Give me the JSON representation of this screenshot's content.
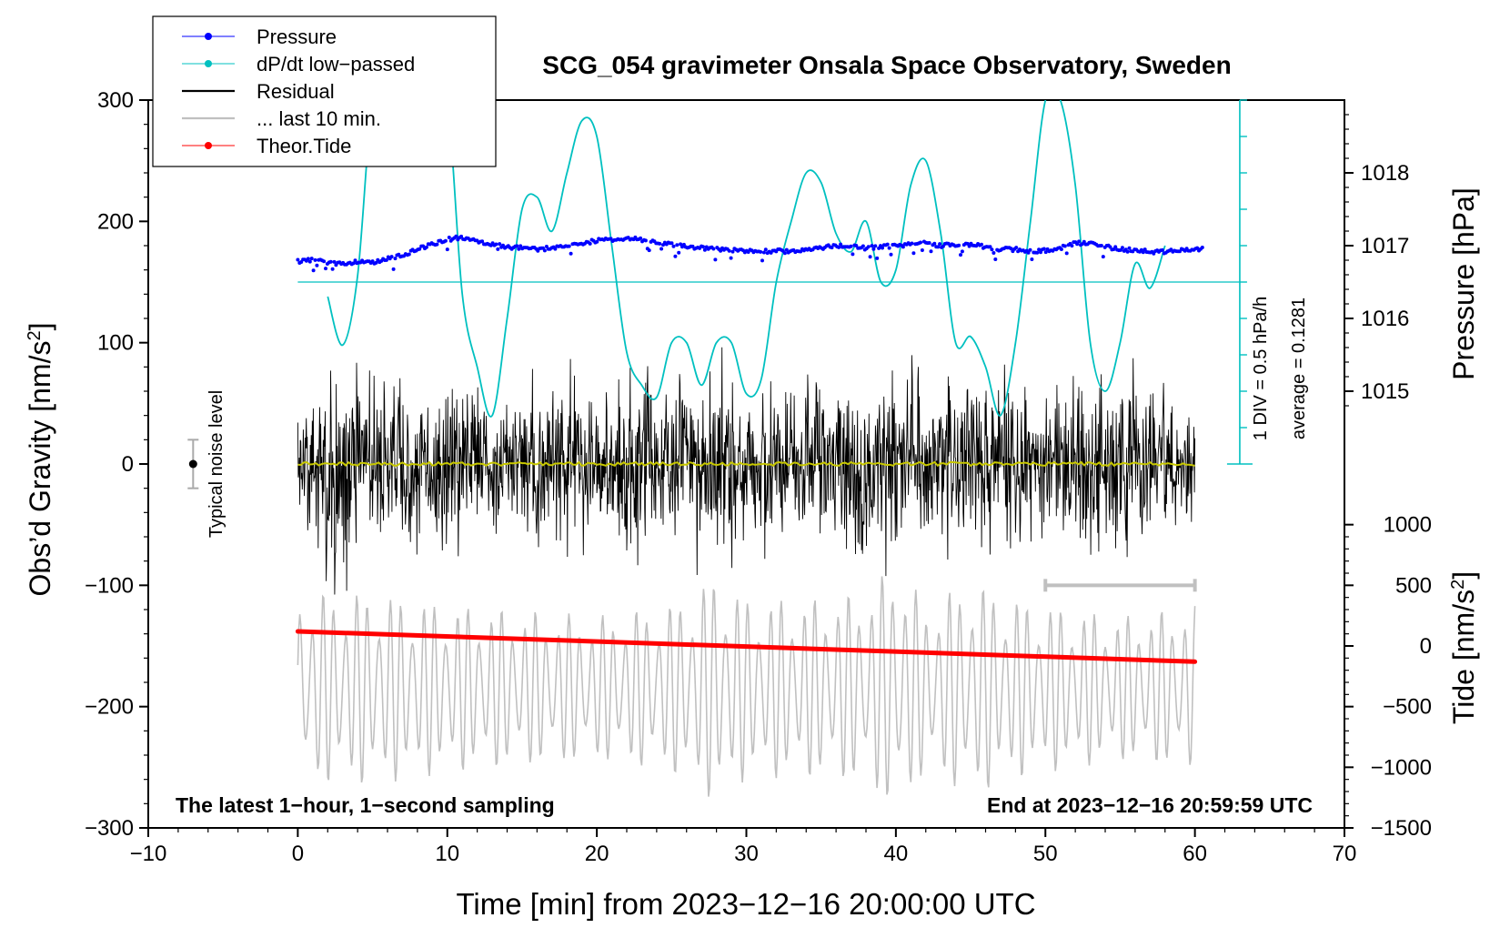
{
  "chart_data": {
    "type": "line",
    "title": "SCG_054 gravimeter Onsala Space Observatory, Sweden",
    "xlabel": "Time [min] from 2023−12−16 20:00:00 UTC",
    "ylabel_left": "Obs’d Gravity [nm/s²]",
    "ylabel_left_parts": {
      "main": "Obs’d Gravity [nm/s",
      "sup": "2",
      "end": "]"
    },
    "ylabel_right_pressure": "Pressure [hPa]",
    "ylabel_right_tide": "Tide [nm/s²]",
    "ylabel_right_tide_parts": {
      "main": "Tide [nm/s",
      "sup": "2",
      "end": "]"
    },
    "xlim": [
      -10,
      70
    ],
    "ylim": [
      -300,
      300
    ],
    "x_ticks": [
      {
        "v": -10,
        "label": "−10"
      },
      {
        "v": 0,
        "label": "0"
      },
      {
        "v": 10,
        "label": "10"
      },
      {
        "v": 20,
        "label": "20"
      },
      {
        "v": 30,
        "label": "30"
      },
      {
        "v": 40,
        "label": "40"
      },
      {
        "v": 50,
        "label": "50"
      },
      {
        "v": 60,
        "label": "60"
      },
      {
        "v": 70,
        "label": "70"
      }
    ],
    "y_ticks": [
      {
        "v": 300,
        "label": "300"
      },
      {
        "v": 200,
        "label": "200"
      },
      {
        "v": 100,
        "label": "100"
      },
      {
        "v": 0,
        "label": "0"
      },
      {
        "v": -100,
        "label": "−100"
      },
      {
        "v": -200,
        "label": "−200"
      },
      {
        "v": -300,
        "label": "−300"
      }
    ],
    "pressure_axis": {
      "map": {
        "value": 1017,
        "gravity": 180,
        "gravity_per_hpa": 60
      },
      "ticks": [
        {
          "v": 1018,
          "label": "1018"
        },
        {
          "v": 1017,
          "label": "1017"
        },
        {
          "v": 1016,
          "label": "1016"
        },
        {
          "v": 1015,
          "label": "1015"
        }
      ]
    },
    "tide_axis": {
      "map": {
        "value": 0,
        "gravity": -150,
        "gravity_per_unit": 0.1
      },
      "ticks": [
        {
          "v": 1000,
          "label": "1000"
        },
        {
          "v": 500,
          "label": "500"
        },
        {
          "v": 0,
          "label": "0"
        },
        {
          "v": -500,
          "label": "−500"
        },
        {
          "v": -1000,
          "label": "−1000"
        },
        {
          "v": -1500,
          "label": "−1500"
        }
      ]
    },
    "legend": {
      "position": "top-left",
      "entries": [
        {
          "label": "Pressure",
          "color": "#0000ff",
          "marker": "dot"
        },
        {
          "label": "dP/dt low−passed",
          "color": "#00c0c0",
          "marker": "dot"
        },
        {
          "label": "Residual",
          "color": "#000000",
          "marker": "line"
        },
        {
          "label": "... last 10 min.",
          "color": "#c0c0c0",
          "marker": "line"
        },
        {
          "label": "Theor.Tide",
          "color": "#ff0000",
          "marker": "dot"
        }
      ]
    },
    "series": [
      {
        "name": "Pressure",
        "color": "#0000ff",
        "points": [
          [
            0,
            167
          ],
          [
            1,
            168
          ],
          [
            2,
            166
          ],
          [
            3,
            165
          ],
          [
            4,
            167
          ],
          [
            5,
            166
          ],
          [
            6,
            169
          ],
          [
            7,
            172
          ],
          [
            8,
            177
          ],
          [
            9,
            181
          ],
          [
            10,
            185
          ],
          [
            11,
            187
          ],
          [
            12,
            184
          ],
          [
            13,
            181
          ],
          [
            14,
            179
          ],
          [
            15,
            178
          ],
          [
            16,
            177
          ],
          [
            17,
            178
          ],
          [
            18,
            180
          ],
          [
            19,
            182
          ],
          [
            20,
            184
          ],
          [
            21,
            185
          ],
          [
            22,
            186
          ],
          [
            23,
            185
          ],
          [
            24,
            183
          ],
          [
            25,
            181
          ],
          [
            26,
            179
          ],
          [
            27,
            178
          ],
          [
            28,
            177
          ],
          [
            29,
            176
          ],
          [
            30,
            176
          ],
          [
            31,
            175
          ],
          [
            32,
            176
          ],
          [
            33,
            175
          ],
          [
            34,
            176
          ],
          [
            35,
            178
          ],
          [
            36,
            180
          ],
          [
            37,
            179
          ],
          [
            38,
            178
          ],
          [
            39,
            179
          ],
          [
            40,
            180
          ],
          [
            41,
            181
          ],
          [
            42,
            182
          ],
          [
            43,
            180
          ],
          [
            44,
            181
          ],
          [
            45,
            181
          ],
          [
            46,
            179
          ],
          [
            47,
            177
          ],
          [
            48,
            177
          ],
          [
            49,
            175
          ],
          [
            50,
            176
          ],
          [
            51,
            178
          ],
          [
            52,
            182
          ],
          [
            53,
            182
          ],
          [
            54,
            179
          ],
          [
            55,
            177
          ],
          [
            56,
            176
          ],
          [
            57,
            175
          ],
          [
            58,
            175
          ],
          [
            59,
            176
          ],
          [
            60,
            177
          ]
        ]
      },
      {
        "name": "dP/dt low−passed",
        "color": "#00c0c0",
        "points": [
          [
            2,
            138
          ],
          [
            3,
            98
          ],
          [
            4,
            155
          ],
          [
            5,
            300
          ],
          [
            6,
            300
          ],
          [
            9,
            300
          ],
          [
            10,
            300
          ],
          [
            11,
            140
          ],
          [
            12,
            80
          ],
          [
            13,
            40
          ],
          [
            14,
            120
          ],
          [
            15,
            210
          ],
          [
            16,
            220
          ],
          [
            17,
            192
          ],
          [
            18,
            240
          ],
          [
            19,
            283
          ],
          [
            20,
            270
          ],
          [
            21,
            180
          ],
          [
            22,
            92
          ],
          [
            23,
            65
          ],
          [
            24,
            55
          ],
          [
            25,
            100
          ],
          [
            26,
            100
          ],
          [
            27,
            65
          ],
          [
            28,
            100
          ],
          [
            29,
            100
          ],
          [
            30,
            58
          ],
          [
            31,
            70
          ],
          [
            32,
            150
          ],
          [
            33,
            200
          ],
          [
            34,
            240
          ],
          [
            35,
            232
          ],
          [
            36,
            190
          ],
          [
            37,
            175
          ],
          [
            38,
            200
          ],
          [
            39,
            150
          ],
          [
            40,
            160
          ],
          [
            41,
            230
          ],
          [
            42,
            250
          ],
          [
            43,
            190
          ],
          [
            44,
            100
          ],
          [
            45,
            105
          ],
          [
            46,
            80
          ],
          [
            47,
            40
          ],
          [
            48,
            100
          ],
          [
            49,
            200
          ],
          [
            50,
            300
          ],
          [
            51,
            300
          ],
          [
            52,
            230
          ],
          [
            53,
            100
          ],
          [
            54,
            60
          ],
          [
            55,
            100
          ],
          [
            56,
            165
          ],
          [
            57,
            145
          ],
          [
            58,
            180
          ]
        ]
      },
      {
        "name": "Residual",
        "color": "#000000",
        "envelope": [
          [
            0,
            40
          ],
          [
            2,
            90
          ],
          [
            3,
            100
          ],
          [
            5,
            75
          ],
          [
            8,
            65
          ],
          [
            10,
            70
          ],
          [
            13,
            60
          ],
          [
            15,
            70
          ],
          [
            18,
            80
          ],
          [
            20,
            70
          ],
          [
            22,
            100
          ],
          [
            25,
            80
          ],
          [
            28,
            80
          ],
          [
            30,
            70
          ],
          [
            33,
            70
          ],
          [
            35,
            80
          ],
          [
            38,
            80
          ],
          [
            40,
            85
          ],
          [
            42,
            65
          ],
          [
            44,
            80
          ],
          [
            46,
            75
          ],
          [
            48,
            70
          ],
          [
            50,
            70
          ],
          [
            52,
            80
          ],
          [
            54,
            90
          ],
          [
            56,
            90
          ],
          [
            58,
            80
          ],
          [
            60,
            40
          ]
        ],
        "min": -120,
        "max": 110
      },
      {
        "name": "... last 10 min.",
        "color": "#c0c0c0",
        "envelope": [
          [
            0,
            80
          ],
          [
            5,
            80
          ],
          [
            10,
            70
          ],
          [
            15,
            65
          ],
          [
            20,
            60
          ],
          [
            25,
            70
          ],
          [
            28,
            95
          ],
          [
            30,
            75
          ],
          [
            35,
            75
          ],
          [
            38,
            80
          ],
          [
            40,
            105
          ],
          [
            42,
            70
          ],
          [
            45,
            90
          ],
          [
            48,
            75
          ],
          [
            50,
            70
          ],
          [
            55,
            60
          ],
          [
            58,
            65
          ],
          [
            60,
            70
          ]
        ],
        "min": -280,
        "max": -85
      },
      {
        "name": "Theor.Tide",
        "color": "#ff0000",
        "points": [
          [
            0,
            -138
          ],
          [
            60,
            -163
          ]
        ]
      }
    ],
    "annotations": [
      {
        "text": "1 DIV = 0.5 hPa/h",
        "where": "right-inside, vertical"
      },
      {
        "text": "average = 0.1281",
        "where": "right-inside, vertical"
      },
      {
        "text": "Typical noise level",
        "where": "left-inside, vertical",
        "x": -7,
        "y": 0,
        "err": 20
      },
      {
        "text": "The latest 1−hour, 1−second sampling",
        "where": "bottom-left"
      },
      {
        "text": "End at 2023−12−16 20:59:59 UTC",
        "where": "bottom-right"
      }
    ],
    "last10_marker": {
      "x_from": 50,
      "x_to": 60,
      "y": -100,
      "color": "#c0c0c0"
    },
    "dpdt_scale": {
      "x": 63,
      "y_base": 0,
      "y_ref": 150,
      "div_units": 30,
      "color": "#00c0c0"
    }
  }
}
